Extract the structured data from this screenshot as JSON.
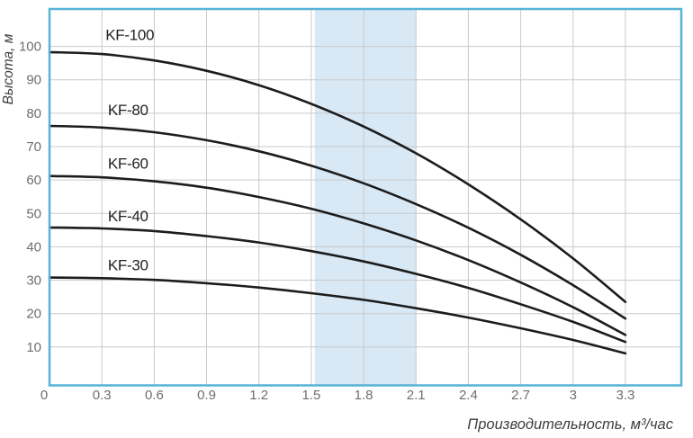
{
  "chart_data": {
    "type": "line",
    "title": "",
    "xlabel": "Производительность, м³/час",
    "ylabel": "Высота, м",
    "xlim": [
      0,
      3.62
    ],
    "ylim": [
      -1.5,
      111.2
    ],
    "grid": true,
    "legend": "inline-curve-labels",
    "x_tick_values": [
      0,
      0.3,
      0.6,
      0.9,
      1.2,
      1.5,
      1.8,
      2.1,
      2.4,
      2.7,
      3,
      3.3
    ],
    "x_tick_labels": [
      "0",
      "0.3",
      "0.6",
      "0.9",
      "1.2",
      "1.5",
      "1.8",
      "2.1",
      "2.4",
      "2.7",
      "3",
      "3.3"
    ],
    "y_tick_values": [
      10,
      20,
      30,
      40,
      50,
      60,
      70,
      80,
      90,
      100
    ],
    "y_tick_labels": [
      "10",
      "20",
      "30",
      "40",
      "50",
      "60",
      "70",
      "80",
      "90",
      "100"
    ],
    "x": [
      0,
      0.3,
      0.6,
      0.9,
      1.2,
      1.5,
      1.8,
      2.1,
      2.4,
      2.7,
      3.0,
      3.3
    ],
    "series": [
      {
        "name": "KF-100",
        "values": [
          98.3,
          97.7,
          95.8,
          92.7,
          88.4,
          82.8,
          76.0,
          68.0,
          58.7,
          48.2,
          36.5,
          23.5
        ],
        "label_q": 0.46,
        "label_h": 103.5
      },
      {
        "name": "KF-80",
        "values": [
          76.2,
          75.7,
          74.3,
          71.9,
          68.6,
          64.3,
          59.0,
          52.8,
          45.7,
          37.6,
          28.5,
          18.5
        ],
        "label_q": 0.45,
        "label_h": 81.0
      },
      {
        "name": "KF-60",
        "values": [
          61.2,
          60.8,
          59.6,
          57.7,
          54.9,
          51.4,
          47.0,
          41.9,
          36.0,
          29.3,
          21.9,
          13.6
        ],
        "label_q": 0.45,
        "label_h": 65.0
      },
      {
        "name": "KF-40",
        "values": [
          45.8,
          45.5,
          44.7,
          43.2,
          41.3,
          38.7,
          35.6,
          31.9,
          27.7,
          22.8,
          17.5,
          11.5
        ],
        "label_q": 0.45,
        "label_h": 49.3
      },
      {
        "name": "KF-30",
        "values": [
          30.8,
          30.6,
          30.1,
          29.1,
          27.8,
          26.1,
          24.1,
          21.6,
          18.8,
          15.6,
          12.1,
          8.1
        ],
        "label_q": 0.45,
        "label_h": 34.6
      }
    ],
    "highlight_band": {
      "x_from": 1.52,
      "x_to": 2.1
    }
  },
  "colors": {
    "frame": "#56b3d5",
    "band": "#d8e8f4",
    "grid": "#c9cacc",
    "curve": "#1c1c1c",
    "tick_text": "#6d6e71",
    "curve_label_text": "#232122",
    "axis_title_text": "#3e3f42"
  }
}
